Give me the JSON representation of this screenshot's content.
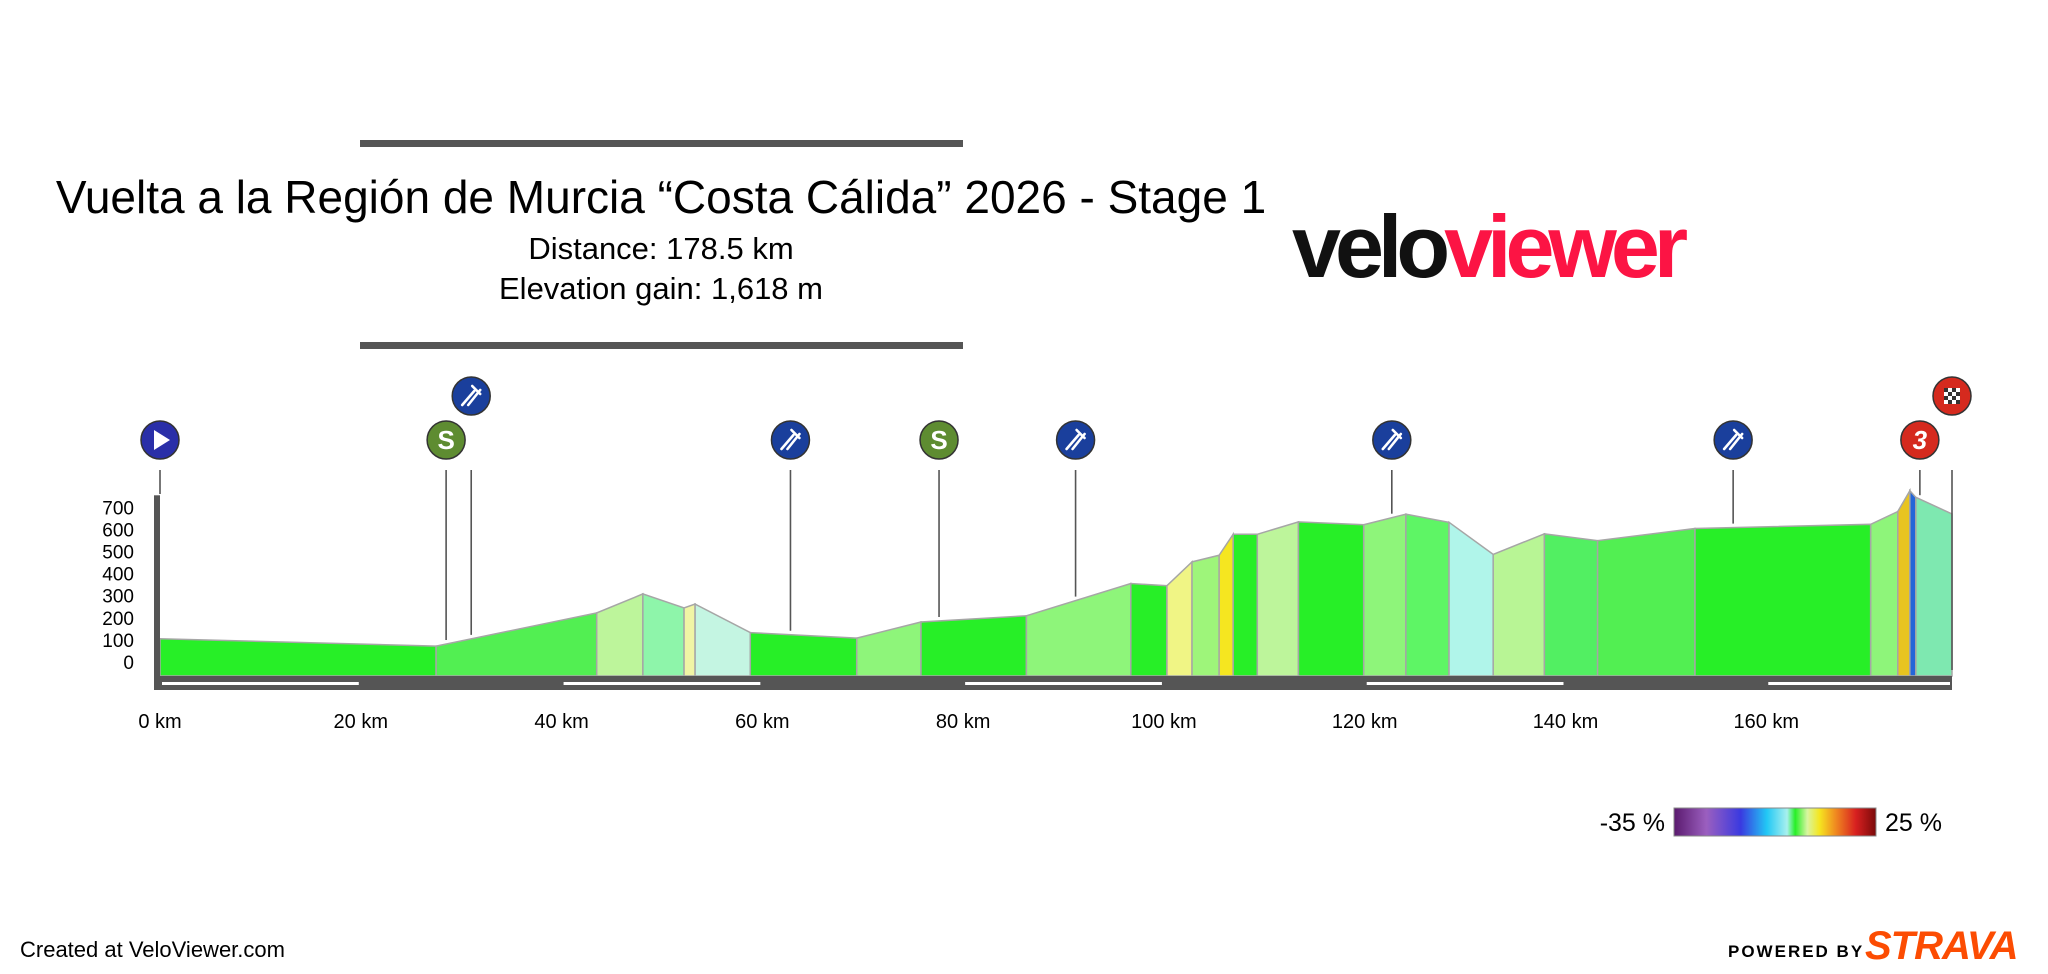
{
  "title": "Vuelta a la Región de Murcia “Costa Cálida” 2026 - Stage 1",
  "distance_text": "Distance: 178.5 km",
  "elevation_text": "Elevation gain: 1,618 m",
  "logo": {
    "part1": "velo",
    "part2": "viewer",
    "color1": "#111111",
    "color2": "#fc1444"
  },
  "footer": {
    "created": "Created at VeloViewer.com",
    "powered": "POWERED BY",
    "strava": "STRAVA",
    "strava_color": "#fc4c02"
  },
  "scale": {
    "min_label": "-35 %",
    "max_label": "25 %"
  },
  "colors": {
    "surface": "#555555",
    "outline": "#a6a6a6",
    "marker_blue": "#1a3f9c",
    "marker_green": "#5e8c31",
    "marker_red": "#d52a1e",
    "start_blue": "#2a2fa8"
  },
  "icons": {
    "start": "play-icon",
    "sprint": "sprint-s-icon",
    "feed": "feed-zone-fork-icon",
    "climb": "climb-category-icon",
    "finish": "finish-flag-icon"
  },
  "markers": [
    {
      "type": "start",
      "km": 0,
      "label": "",
      "raised": false
    },
    {
      "type": "sprint",
      "km": 28.5,
      "label": "S",
      "raised": false
    },
    {
      "type": "feed",
      "km": 31,
      "label": "",
      "raised": true
    },
    {
      "type": "feed",
      "km": 62.8,
      "label": "",
      "raised": false
    },
    {
      "type": "sprint",
      "km": 77.6,
      "label": "S",
      "raised": false
    },
    {
      "type": "feed",
      "km": 91.2,
      "label": "",
      "raised": false
    },
    {
      "type": "feed",
      "km": 122.7,
      "label": "",
      "raised": false
    },
    {
      "type": "feed",
      "km": 156.7,
      "label": "",
      "raised": false
    },
    {
      "type": "climb",
      "km": 175.3,
      "label": "3",
      "raised": false
    },
    {
      "type": "finish",
      "km": 178.5,
      "label": "",
      "raised": true
    }
  ],
  "chart_data": {
    "type": "area",
    "title": "Vuelta a la Región de Murcia “Costa Cálida” 2026 - Stage 1",
    "xlabel": "",
    "ylabel": "",
    "xlim": [
      0,
      178.5
    ],
    "ylim": [
      -90,
      780
    ],
    "x_ticks": [
      0,
      20,
      40,
      60,
      80,
      100,
      120,
      140,
      160
    ],
    "x_tick_labels": [
      "0 km",
      "20 km",
      "40 km",
      "60 km",
      "80 km",
      "100 km",
      "120 km",
      "140 km",
      "160 km"
    ],
    "y_ticks": [
      0,
      100,
      200,
      300,
      400,
      500,
      600,
      700
    ],
    "y_tick_labels": [
      "0",
      "100",
      "200",
      "300",
      "400",
      "500",
      "600",
      "700"
    ],
    "grid": false,
    "segments": [
      {
        "x0": 0,
        "x1": 27.5,
        "y0": 105,
        "y1": 72,
        "color": "#27ef27"
      },
      {
        "x0": 27.5,
        "x1": 43.5,
        "y0": 72,
        "y1": 222,
        "color": "#52ef52"
      },
      {
        "x0": 43.5,
        "x1": 48.1,
        "y0": 222,
        "y1": 308,
        "color": "#bdf59b"
      },
      {
        "x0": 48.1,
        "x1": 52.2,
        "y0": 308,
        "y1": 245,
        "color": "#8ef5aa"
      },
      {
        "x0": 52.2,
        "x1": 53.3,
        "y0": 245,
        "y1": 262,
        "color": "#f0f5a5"
      },
      {
        "x0": 53.3,
        "x1": 58.8,
        "y0": 262,
        "y1": 133,
        "color": "#c4f5e2"
      },
      {
        "x0": 58.8,
        "x1": 69.4,
        "y0": 133,
        "y1": 108,
        "color": "#27ef27"
      },
      {
        "x0": 69.4,
        "x1": 75.8,
        "y0": 108,
        "y1": 181,
        "color": "#8ef57a"
      },
      {
        "x0": 75.8,
        "x1": 86.3,
        "y0": 181,
        "y1": 209,
        "color": "#27ef27"
      },
      {
        "x0": 86.3,
        "x1": 96.7,
        "y0": 209,
        "y1": 355,
        "color": "#8ef57a"
      },
      {
        "x0": 96.7,
        "x1": 100.3,
        "y0": 355,
        "y1": 345,
        "color": "#27ef27"
      },
      {
        "x0": 100.3,
        "x1": 102.8,
        "y0": 345,
        "y1": 453,
        "color": "#f0f585"
      },
      {
        "x0": 102.8,
        "x1": 105.5,
        "y0": 453,
        "y1": 483,
        "color": "#9ef57a"
      },
      {
        "x0": 105.5,
        "x1": 106.9,
        "y0": 483,
        "y1": 578,
        "color": "#f5e620"
      },
      {
        "x0": 106.9,
        "x1": 109.3,
        "y0": 578,
        "y1": 578,
        "color": "#27ef27"
      },
      {
        "x0": 109.3,
        "x1": 113.4,
        "y0": 578,
        "y1": 634,
        "color": "#bdf59b"
      },
      {
        "x0": 113.4,
        "x1": 119.9,
        "y0": 634,
        "y1": 621,
        "color": "#27ef27"
      },
      {
        "x0": 119.9,
        "x1": 124.1,
        "y0": 621,
        "y1": 669,
        "color": "#8ef57a"
      },
      {
        "x0": 124.1,
        "x1": 128.4,
        "y0": 669,
        "y1": 632,
        "color": "#5ef565"
      },
      {
        "x0": 128.4,
        "x1": 132.8,
        "y0": 632,
        "y1": 487,
        "color": "#b0f5ea"
      },
      {
        "x0": 132.8,
        "x1": 137.9,
        "y0": 487,
        "y1": 580,
        "color": "#b8f595"
      },
      {
        "x0": 137.9,
        "x1": 143.2,
        "y0": 580,
        "y1": 549,
        "color": "#52ef62"
      },
      {
        "x0": 143.2,
        "x1": 152.9,
        "y0": 549,
        "y1": 604,
        "color": "#52ef52"
      },
      {
        "x0": 152.9,
        "x1": 170.4,
        "y0": 604,
        "y1": 623,
        "color": "#27ef27"
      },
      {
        "x0": 170.4,
        "x1": 173.1,
        "y0": 623,
        "y1": 681,
        "color": "#8ef57a"
      },
      {
        "x0": 173.1,
        "x1": 174.3,
        "y0": 681,
        "y1": 775,
        "color": "#e8c420"
      },
      {
        "x0": 174.3,
        "x1": 174.9,
        "y0": 775,
        "y1": 745,
        "color": "#2466d8"
      },
      {
        "x0": 174.9,
        "x1": 178.5,
        "y0": 745,
        "y1": 670,
        "color": "#7ee8b0"
      }
    ],
    "climb_gradient_scale": {
      "min": -35,
      "max": 25,
      "unit": "%"
    }
  }
}
